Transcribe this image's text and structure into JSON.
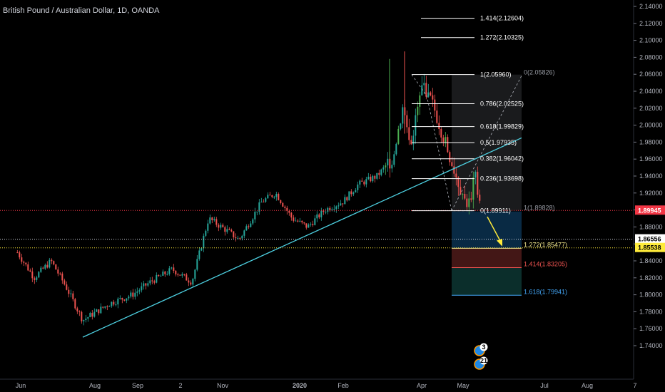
{
  "header": {
    "title": "British Pound / Australian Dollar, 1D, OANDA"
  },
  "colors": {
    "background": "#000000",
    "bull": "#26a69a",
    "bull_bright": "#4caf50",
    "bear": "#ef5350",
    "trendline": "#4dd0e1",
    "arrow": "#ffeb3b",
    "price_line": "#f23645"
  },
  "chart_data": {
    "type": "candlestick",
    "title": "British Pound / Australian Dollar, 1D, OANDA",
    "y_axis": {
      "min": 1.73,
      "max": 2.15,
      "ticks": [
        "2.14000",
        "2.12000",
        "2.10000",
        "2.08000",
        "2.06000",
        "2.04000",
        "2.02000",
        "2.00000",
        "1.98000",
        "1.96000",
        "1.94000",
        "1.92000",
        "1.90000",
        "1.88000",
        "1.86000",
        "1.84000",
        "1.82000",
        "1.80000",
        "1.78000",
        "1.76000",
        "1.74000"
      ]
    },
    "x_axis": {
      "labels": [
        "Jun",
        "Aug",
        "Sep",
        "2",
        "Nov",
        "2020",
        "Feb",
        "Apr",
        "May",
        "Jul",
        "Aug",
        "7"
      ]
    },
    "price_points": [
      {
        "date": "2019-05-27",
        "price": 1.85
      },
      {
        "date": "2019-06-12",
        "price": 1.82
      },
      {
        "date": "2019-06-26",
        "price": 1.84
      },
      {
        "date": "2019-07-08",
        "price": 1.81
      },
      {
        "date": "2019-07-22",
        "price": 1.77
      },
      {
        "date": "2019-08-12",
        "price": 1.79
      },
      {
        "date": "2019-08-28",
        "price": 1.8
      },
      {
        "date": "2019-09-10",
        "price": 1.815
      },
      {
        "date": "2019-09-26",
        "price": 1.83
      },
      {
        "date": "2019-10-10",
        "price": 1.815
      },
      {
        "date": "2019-10-22",
        "price": 1.89
      },
      {
        "date": "2019-11-05",
        "price": 1.875
      },
      {
        "date": "2019-11-14",
        "price": 1.865
      },
      {
        "date": "2019-12-02",
        "price": 1.91
      },
      {
        "date": "2019-12-13",
        "price": 1.92
      },
      {
        "date": "2019-12-26",
        "price": 1.89
      },
      {
        "date": "2020-01-07",
        "price": 1.88
      },
      {
        "date": "2020-01-20",
        "price": 1.9
      },
      {
        "date": "2020-02-03",
        "price": 1.91
      },
      {
        "date": "2020-02-14",
        "price": 1.93
      },
      {
        "date": "2020-02-28",
        "price": 1.94
      },
      {
        "date": "2020-03-10",
        "price": 1.96
      },
      {
        "date": "2020-03-18",
        "price": 2.02
      },
      {
        "date": "2020-03-24",
        "price": 1.98
      },
      {
        "date": "2020-04-02",
        "price": 2.05
      },
      {
        "date": "2020-04-10",
        "price": 2.02
      },
      {
        "date": "2020-04-20",
        "price": 1.97
      },
      {
        "date": "2020-04-28",
        "price": 1.93
      },
      {
        "date": "2020-05-05",
        "price": 1.905
      },
      {
        "date": "2020-05-10",
        "price": 1.94
      },
      {
        "date": "2020-05-14",
        "price": 1.899
      }
    ],
    "trendline": {
      "start": {
        "date": "2019-07-22",
        "price": 1.75
      },
      "end": {
        "date": "2020-06-18",
        "price": 1.99
      }
    },
    "fib_retracement": [
      {
        "label": "1.414(2.12604)",
        "price": 2.12604
      },
      {
        "label": "1.272(2.10325)",
        "price": 2.10325
      },
      {
        "label": "1(2.05960)",
        "price": 2.0596
      },
      {
        "label": "0.786(2.02525)",
        "price": 2.02525
      },
      {
        "label": "0.618(1.99829)",
        "price": 1.99829
      },
      {
        "label": "0.5(1.97935)",
        "price": 1.97935
      },
      {
        "label": "0.382(1.96042)",
        "price": 1.96042
      },
      {
        "label": "0.236(1.93698)",
        "price": 1.93698
      },
      {
        "label": "0(1.89911)",
        "price": 1.89911
      }
    ],
    "fib_extension": [
      {
        "label": "0(2.05826)",
        "price": 2.05826
      },
      {
        "label": "1(1.89828)",
        "price": 1.89828
      },
      {
        "label": "1.272(1.85477)",
        "price": 1.85477
      },
      {
        "label": "1.414(1.83205)",
        "price": 1.83205
      },
      {
        "label": "1.618(1.79941)",
        "price": 1.79941
      }
    ],
    "price_labels": [
      {
        "label": "1.89945",
        "price": 1.89945,
        "color": "#f23645",
        "text_color": "#ffffff"
      },
      {
        "label": "1.86556",
        "price": 1.86556,
        "color": "#ffffff",
        "text_color": "#000000"
      },
      {
        "label": "1.85538",
        "price": 1.85538,
        "color": "#ffeb3b",
        "text_color": "#000000"
      }
    ],
    "event_badges": [
      "3",
      "21"
    ],
    "grid": false
  }
}
